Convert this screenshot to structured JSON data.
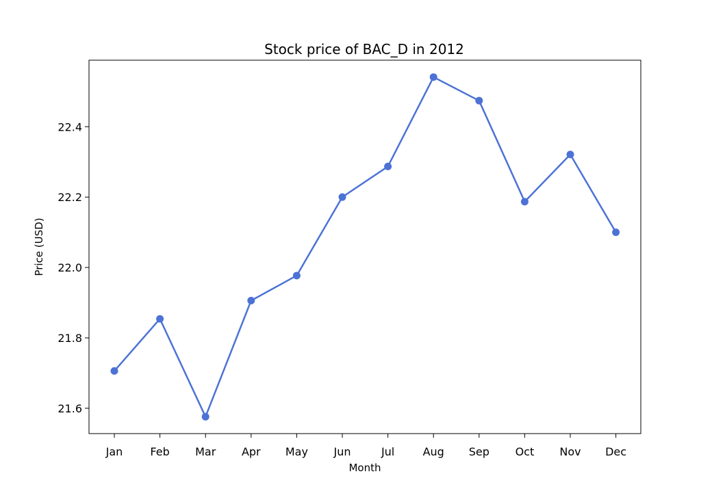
{
  "chart_data": {
    "type": "line",
    "title": "Stock price of BAC_D in 2012",
    "xlabel": "Month",
    "ylabel": "Price (USD)",
    "categories": [
      "Jan",
      "Feb",
      "Mar",
      "Apr",
      "May",
      "Jun",
      "Jul",
      "Aug",
      "Sep",
      "Oct",
      "Nov",
      "Dec"
    ],
    "series": [
      {
        "values": [
          21.706,
          21.854,
          21.576,
          21.906,
          21.977,
          22.2,
          22.287,
          22.541,
          22.474,
          22.187,
          22.321,
          22.1
        ],
        "color": "#4c72d6",
        "marker": "circle"
      }
    ],
    "yticks": [
      21.6,
      21.8,
      22.0,
      22.2,
      22.4
    ],
    "ylim": [
      21.528,
      22.589
    ],
    "grid": false,
    "legend": "none"
  }
}
